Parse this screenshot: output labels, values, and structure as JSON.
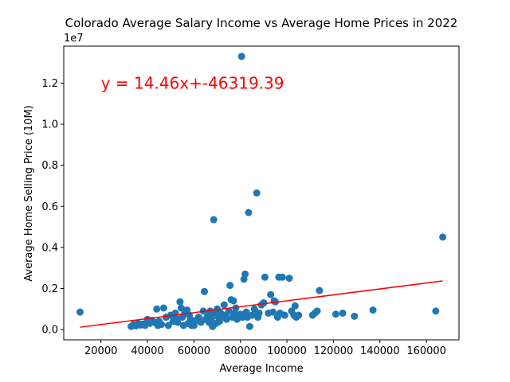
{
  "chart_data": {
    "type": "scatter",
    "title": "Colorado Average Salary Income vs Average Home Prices in 2022",
    "xlabel": "Average Income",
    "ylabel": "Average Home Selling Price (10M)",
    "y_offset_label": "1e7",
    "xlim": [
      4000,
      174000
    ],
    "ylim": [
      -500000,
      13800000
    ],
    "x_ticks": [
      20000,
      40000,
      60000,
      80000,
      100000,
      120000,
      140000,
      160000
    ],
    "x_tick_labels": [
      "20000",
      "40000",
      "60000",
      "80000",
      "100000",
      "120000",
      "140000",
      "160000"
    ],
    "y_ticks": [
      0,
      2000000,
      4000000,
      6000000,
      8000000,
      10000000,
      12000000
    ],
    "y_tick_labels": [
      "0.0",
      "0.2",
      "0.4",
      "0.6",
      "0.8",
      "1.0",
      "1.2"
    ],
    "grid": false,
    "marker_color": "#1f77b4",
    "regression": {
      "equation_label": "y = 14.46x+-46319.39",
      "slope": 14.46,
      "intercept": -46319.39,
      "x_range": [
        11000,
        167000
      ],
      "color": "#ff0000",
      "label_position": [
        20000,
        12000000
      ]
    },
    "series": [
      {
        "points": [
          [
            11000,
            850000
          ],
          [
            33000,
            150000
          ],
          [
            34000,
            250000
          ],
          [
            35000,
            180000
          ],
          [
            36000,
            300000
          ],
          [
            37000,
            220000
          ],
          [
            38000,
            270000
          ],
          [
            39000,
            200000
          ],
          [
            40000,
            500000
          ],
          [
            41000,
            300000
          ],
          [
            42000,
            450000
          ],
          [
            43000,
            350000
          ],
          [
            44000,
            1000000
          ],
          [
            44500,
            200000
          ],
          [
            45000,
            400000
          ],
          [
            46000,
            250000
          ],
          [
            47000,
            1050000
          ],
          [
            48000,
            600000
          ],
          [
            49000,
            200000
          ],
          [
            50000,
            700000
          ],
          [
            51000,
            400000
          ],
          [
            52000,
            800000
          ],
          [
            52500,
            550000
          ],
          [
            53000,
            350000
          ],
          [
            54000,
            1350000
          ],
          [
            54500,
            1050000
          ],
          [
            55000,
            600000
          ],
          [
            55500,
            200000
          ],
          [
            56000,
            800000
          ],
          [
            57000,
            950000
          ],
          [
            57500,
            300000
          ],
          [
            58000,
            700000
          ],
          [
            58500,
            500000
          ],
          [
            59000,
            200000
          ],
          [
            60000,
            200000
          ],
          [
            61000,
            450000
          ],
          [
            62000,
            600000
          ],
          [
            63000,
            350000
          ],
          [
            64000,
            900000
          ],
          [
            64500,
            1850000
          ],
          [
            65000,
            500000
          ],
          [
            66000,
            700000
          ],
          [
            66500,
            350000
          ],
          [
            67000,
            900000
          ],
          [
            67500,
            550000
          ],
          [
            68000,
            150000
          ],
          [
            68500,
            5350000
          ],
          [
            69000,
            800000
          ],
          [
            69500,
            300000
          ],
          [
            70000,
            1000000
          ],
          [
            70500,
            600000
          ],
          [
            71000,
            400000
          ],
          [
            71500,
            800000
          ],
          [
            72000,
            650000
          ],
          [
            73000,
            1200000
          ],
          [
            73500,
            700000
          ],
          [
            74000,
            500000
          ],
          [
            75000,
            900000
          ],
          [
            75500,
            2150000
          ],
          [
            76000,
            1450000
          ],
          [
            76500,
            600000
          ],
          [
            77000,
            1400000
          ],
          [
            77500,
            800000
          ],
          [
            78000,
            1050000
          ],
          [
            78500,
            500000
          ],
          [
            79000,
            700000
          ],
          [
            79500,
            600000
          ],
          [
            80000,
            750000
          ],
          [
            80500,
            13300000
          ],
          [
            81000,
            600000
          ],
          [
            81500,
            2450000
          ],
          [
            82000,
            2700000
          ],
          [
            82500,
            850000
          ],
          [
            83000,
            600000
          ],
          [
            83500,
            5700000
          ],
          [
            84000,
            150000
          ],
          [
            85000,
            700000
          ],
          [
            86000,
            1000000
          ],
          [
            86500,
            800000
          ],
          [
            87000,
            6650000
          ],
          [
            87500,
            600000
          ],
          [
            88000,
            800000
          ],
          [
            89000,
            1200000
          ],
          [
            90000,
            1300000
          ],
          [
            90500,
            2550000
          ],
          [
            92000,
            800000
          ],
          [
            93000,
            1700000
          ],
          [
            94000,
            850000
          ],
          [
            94500,
            1400000
          ],
          [
            95000,
            1350000
          ],
          [
            96000,
            600000
          ],
          [
            96500,
            2550000
          ],
          [
            97000,
            800000
          ],
          [
            98000,
            2550000
          ],
          [
            99000,
            700000
          ],
          [
            101000,
            2500000
          ],
          [
            102000,
            900000
          ],
          [
            103000,
            700000
          ],
          [
            103500,
            1150000
          ],
          [
            104000,
            600000
          ],
          [
            105000,
            700000
          ],
          [
            111000,
            700000
          ],
          [
            112000,
            800000
          ],
          [
            113000,
            900000
          ],
          [
            114000,
            1900000
          ],
          [
            121000,
            750000
          ],
          [
            124000,
            800000
          ],
          [
            129000,
            650000
          ],
          [
            137000,
            950000
          ],
          [
            164000,
            900000
          ],
          [
            167000,
            4500000
          ]
        ]
      }
    ]
  }
}
